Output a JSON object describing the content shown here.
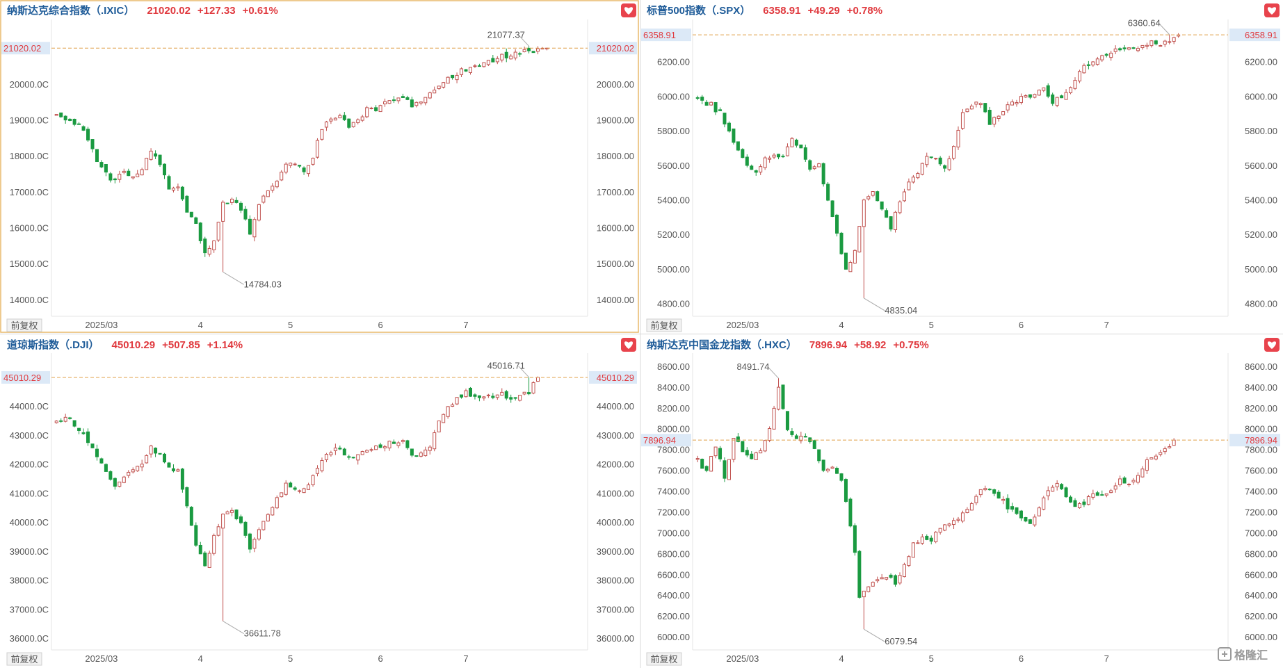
{
  "buttons": {
    "restore_label": "前复权"
  },
  "watermark": {
    "text": "格隆汇"
  },
  "colors": {
    "up": "#c0504d",
    "down": "#1a9a41",
    "price_line": "#e0a04a",
    "text_up": "#e0393e",
    "title": "#1f5c99",
    "last_bg": "#dce9f7"
  },
  "chart_data": [
    {
      "type": "candlestick",
      "name": "纳斯达克综合指数（.IXIC）",
      "last": "21020.02",
      "change": "+127.33",
      "change_pct": "+0.61%",
      "last_value": 21020.02,
      "ylim": [
        13550,
        21780
      ],
      "yticks": [
        14000,
        15000,
        16000,
        17000,
        18000,
        19000,
        20000
      ],
      "ytick_labels_left": [
        "14000.0C",
        "15000.0C",
        "16000.0C",
        "17000.0C",
        "18000.0C",
        "19000.0C",
        "20000.0C"
      ],
      "ytick_labels_right": [
        "14000.00",
        "15000.00",
        "16000.00",
        "17000.00",
        "18000.00",
        "19000.00",
        "20000.00"
      ],
      "xticks": [
        {
          "label": "2025/03",
          "index": 10
        },
        {
          "label": "4",
          "index": 32
        },
        {
          "label": "5",
          "index": 52
        },
        {
          "label": "6",
          "index": 72
        },
        {
          "label": "7",
          "index": 91
        }
      ],
      "n_bars": 117,
      "annotations": [
        {
          "text": "21077.37",
          "index": 105,
          "value": 21077.37,
          "pos": "high"
        },
        {
          "text": "14784.03",
          "index": 37,
          "value": 14784.03,
          "pos": "low"
        }
      ],
      "keypoints": [
        [
          0,
          19150
        ],
        [
          3,
          19000
        ],
        [
          5,
          18900
        ],
        [
          7,
          18400
        ],
        [
          9,
          17900
        ],
        [
          11,
          17500
        ],
        [
          13,
          17300
        ],
        [
          15,
          17600
        ],
        [
          17,
          17500
        ],
        [
          19,
          17600
        ],
        [
          21,
          18200
        ],
        [
          23,
          17800
        ],
        [
          25,
          17100
        ],
        [
          27,
          17200
        ],
        [
          29,
          16500
        ],
        [
          31,
          16100
        ],
        [
          33,
          15300
        ],
        [
          35,
          15600
        ],
        [
          37,
          16700
        ],
        [
          39,
          16800
        ],
        [
          41,
          16500
        ],
        [
          43,
          15900
        ],
        [
          45,
          16700
        ],
        [
          47,
          17100
        ],
        [
          49,
          17300
        ],
        [
          51,
          17800
        ],
        [
          53,
          17800
        ],
        [
          55,
          17600
        ],
        [
          57,
          18000
        ],
        [
          59,
          18800
        ],
        [
          61,
          19100
        ],
        [
          63,
          19100
        ],
        [
          65,
          18800
        ],
        [
          67,
          19000
        ],
        [
          69,
          19300
        ],
        [
          71,
          19300
        ],
        [
          73,
          19500
        ],
        [
          75,
          19600
        ],
        [
          77,
          19700
        ],
        [
          79,
          19400
        ],
        [
          81,
          19500
        ],
        [
          83,
          19800
        ],
        [
          85,
          20000
        ],
        [
          87,
          20200
        ],
        [
          89,
          20300
        ],
        [
          91,
          20400
        ],
        [
          93,
          20500
        ],
        [
          95,
          20600
        ],
        [
          97,
          20650
        ],
        [
          99,
          20800
        ],
        [
          101,
          20850
        ],
        [
          103,
          20900
        ],
        [
          105,
          21000
        ],
        [
          107,
          20950
        ],
        [
          109,
          21020
        ]
      ]
    },
    {
      "type": "candlestick",
      "name": "标普500指数（.SPX）",
      "last": "6358.91",
      "change": "+49.29",
      "change_pct": "+0.78%",
      "last_value": 6358.91,
      "ylim": [
        4730,
        6440
      ],
      "yticks": [
        4800,
        5000,
        5200,
        5400,
        5600,
        5800,
        6000,
        6200
      ],
      "ytick_labels_left": [
        "4800.00",
        "5000.00",
        "5200.00",
        "5400.00",
        "5600.00",
        "5800.00",
        "6000.00",
        "6200.00"
      ],
      "ytick_labels_right": [
        "4800.00",
        "5000.00",
        "5200.00",
        "5400.00",
        "5600.00",
        "5800.00",
        "6000.00",
        "6200.00"
      ],
      "xticks": [
        {
          "label": "2025/03",
          "index": 10
        },
        {
          "label": "4",
          "index": 32
        },
        {
          "label": "5",
          "index": 52
        },
        {
          "label": "6",
          "index": 72
        },
        {
          "label": "7",
          "index": 91
        }
      ],
      "n_bars": 117,
      "annotations": [
        {
          "text": "6360.64",
          "index": 105,
          "value": 6360.64,
          "pos": "high"
        },
        {
          "text": "4835.04",
          "index": 37,
          "value": 4835.04,
          "pos": "low"
        }
      ],
      "keypoints": [
        [
          0,
          6000
        ],
        [
          3,
          5950
        ],
        [
          5,
          5900
        ],
        [
          7,
          5800
        ],
        [
          9,
          5700
        ],
        [
          11,
          5600
        ],
        [
          13,
          5580
        ],
        [
          15,
          5650
        ],
        [
          17,
          5660
        ],
        [
          19,
          5650
        ],
        [
          21,
          5750
        ],
        [
          23,
          5700
        ],
        [
          25,
          5580
        ],
        [
          27,
          5600
        ],
        [
          29,
          5400
        ],
        [
          31,
          5200
        ],
        [
          33,
          5000
        ],
        [
          35,
          5100
        ],
        [
          37,
          5400
        ],
        [
          39,
          5450
        ],
        [
          41,
          5350
        ],
        [
          43,
          5250
        ],
        [
          45,
          5400
        ],
        [
          47,
          5500
        ],
        [
          49,
          5550
        ],
        [
          51,
          5650
        ],
        [
          53,
          5650
        ],
        [
          55,
          5600
        ],
        [
          57,
          5700
        ],
        [
          59,
          5900
        ],
        [
          61,
          5950
        ],
        [
          63,
          5960
        ],
        [
          65,
          5850
        ],
        [
          67,
          5900
        ],
        [
          69,
          5950
        ],
        [
          71,
          5980
        ],
        [
          73,
          6000
        ],
        [
          75,
          6020
        ],
        [
          77,
          6050
        ],
        [
          79,
          5980
        ],
        [
          81,
          6000
        ],
        [
          83,
          6050
        ],
        [
          85,
          6150
        ],
        [
          87,
          6200
        ],
        [
          89,
          6220
        ],
        [
          91,
          6250
        ],
        [
          93,
          6260
        ],
        [
          95,
          6270
        ],
        [
          97,
          6280
        ],
        [
          99,
          6300
        ],
        [
          101,
          6310
        ],
        [
          103,
          6300
        ],
        [
          105,
          6330
        ],
        [
          107,
          6359
        ]
      ]
    },
    {
      "type": "candlestick",
      "name": "道琼斯指数（.DJI）",
      "last": "45010.29",
      "change": "+507.85",
      "change_pct": "+1.14%",
      "last_value": 45010.29,
      "ylim": [
        35620,
        45800
      ],
      "yticks": [
        36000,
        37000,
        38000,
        39000,
        40000,
        41000,
        42000,
        43000,
        44000
      ],
      "ytick_labels_left": [
        "36000.0C",
        "37000.0C",
        "38000.0C",
        "39000.0C",
        "40000.0C",
        "41000.0C",
        "42000.0C",
        "43000.0C",
        "44000.0C"
      ],
      "ytick_labels_right": [
        "36000.00",
        "37000.00",
        "38000.00",
        "39000.00",
        "40000.00",
        "41000.00",
        "42000.00",
        "43000.00",
        "44000.00"
      ],
      "xticks": [
        {
          "label": "2025/03",
          "index": 10
        },
        {
          "label": "4",
          "index": 32
        },
        {
          "label": "5",
          "index": 52
        },
        {
          "label": "6",
          "index": 72
        },
        {
          "label": "7",
          "index": 91
        }
      ],
      "n_bars": 117,
      "annotations": [
        {
          "text": "45016.71",
          "index": 105,
          "value": 45016.71,
          "pos": "high"
        },
        {
          "text": "36611.78",
          "index": 37,
          "value": 36611.78,
          "pos": "low"
        }
      ],
      "keypoints": [
        [
          0,
          43500
        ],
        [
          3,
          43600
        ],
        [
          5,
          43200
        ],
        [
          7,
          42800
        ],
        [
          9,
          42400
        ],
        [
          11,
          41800
        ],
        [
          13,
          41300
        ],
        [
          15,
          41600
        ],
        [
          17,
          41900
        ],
        [
          19,
          42000
        ],
        [
          21,
          42600
        ],
        [
          23,
          42400
        ],
        [
          25,
          41900
        ],
        [
          27,
          41800
        ],
        [
          29,
          40500
        ],
        [
          31,
          39200
        ],
        [
          33,
          38500
        ],
        [
          35,
          39500
        ],
        [
          37,
          40300
        ],
        [
          39,
          40400
        ],
        [
          41,
          40000
        ],
        [
          43,
          39200
        ],
        [
          45,
          39800
        ],
        [
          47,
          40300
        ],
        [
          49,
          40800
        ],
        [
          51,
          41300
        ],
        [
          53,
          41200
        ],
        [
          55,
          41100
        ],
        [
          57,
          41600
        ],
        [
          59,
          42200
        ],
        [
          61,
          42400
        ],
        [
          63,
          42600
        ],
        [
          65,
          42200
        ],
        [
          67,
          42300
        ],
        [
          69,
          42500
        ],
        [
          71,
          42600
        ],
        [
          73,
          42700
        ],
        [
          75,
          42800
        ],
        [
          77,
          42900
        ],
        [
          79,
          42300
        ],
        [
          81,
          42300
        ],
        [
          83,
          42700
        ],
        [
          85,
          43500
        ],
        [
          87,
          44000
        ],
        [
          89,
          44300
        ],
        [
          91,
          44500
        ],
        [
          93,
          44400
        ],
        [
          95,
          44300
        ],
        [
          97,
          44300
        ],
        [
          99,
          44400
        ],
        [
          101,
          44200
        ],
        [
          103,
          44400
        ],
        [
          105,
          44500
        ],
        [
          107,
          45010
        ]
      ]
    },
    {
      "type": "candlestick",
      "name": "纳斯达克中国金龙指数（.HXC）",
      "last": "7896.94",
      "change": "+58.92",
      "change_pct": "+0.75%",
      "last_value": 7896.94,
      "ylim": [
        5880,
        8720
      ],
      "yticks": [
        6000,
        6200,
        6400,
        6600,
        6800,
        7000,
        7200,
        7400,
        7600,
        7800,
        8000,
        8200,
        8400,
        8600
      ],
      "ytick_labels_left": [
        "6000.00",
        "6200.00",
        "6400.00",
        "6600.00",
        "6800.00",
        "7000.00",
        "7200.00",
        "7400.00",
        "7600.00",
        "7800.00",
        "8000.00",
        "8200.00",
        "8400.00",
        "8600.00"
      ],
      "ytick_labels_right": [
        "6000.00",
        "6200.00",
        "6400.00",
        "6600.00",
        "6800.00",
        "7000.00",
        "7200.00",
        "7400.00",
        "7600.00",
        "7800.00",
        "8000.00",
        "8200.00",
        "8400.00",
        "8600.00"
      ],
      "xticks": [
        {
          "label": "2025/03",
          "index": 10
        },
        {
          "label": "4",
          "index": 32
        },
        {
          "label": "5",
          "index": 52
        },
        {
          "label": "6",
          "index": 72
        },
        {
          "label": "7",
          "index": 91
        }
      ],
      "n_bars": 117,
      "annotations": [
        {
          "text": "8491.74",
          "index": 18,
          "value": 8491.74,
          "pos": "high"
        },
        {
          "text": "6079.54",
          "index": 37,
          "value": 6079.54,
          "pos": "low"
        }
      ],
      "keypoints": [
        [
          0,
          7700
        ],
        [
          2,
          7600
        ],
        [
          4,
          7850
        ],
        [
          6,
          7550
        ],
        [
          8,
          7900
        ],
        [
          10,
          7800
        ],
        [
          12,
          7750
        ],
        [
          14,
          7800
        ],
        [
          16,
          8000
        ],
        [
          18,
          8400
        ],
        [
          20,
          8000
        ],
        [
          22,
          7900
        ],
        [
          24,
          7950
        ],
        [
          26,
          7800
        ],
        [
          28,
          7600
        ],
        [
          30,
          7650
        ],
        [
          32,
          7500
        ],
        [
          34,
          7100
        ],
        [
          35,
          6800
        ],
        [
          36,
          6400
        ],
        [
          38,
          6500
        ],
        [
          40,
          6550
        ],
        [
          42,
          6600
        ],
        [
          44,
          6500
        ],
        [
          46,
          6700
        ],
        [
          48,
          6900
        ],
        [
          50,
          6950
        ],
        [
          52,
          6950
        ],
        [
          54,
          7050
        ],
        [
          56,
          7100
        ],
        [
          58,
          7150
        ],
        [
          60,
          7200
        ],
        [
          62,
          7350
        ],
        [
          64,
          7450
        ],
        [
          66,
          7400
        ],
        [
          68,
          7300
        ],
        [
          70,
          7200
        ],
        [
          72,
          7150
        ],
        [
          74,
          7100
        ],
        [
          76,
          7250
        ],
        [
          78,
          7400
        ],
        [
          80,
          7500
        ],
        [
          82,
          7350
        ],
        [
          84,
          7250
        ],
        [
          86,
          7300
        ],
        [
          88,
          7350
        ],
        [
          90,
          7350
        ],
        [
          92,
          7400
        ],
        [
          94,
          7500
        ],
        [
          96,
          7450
        ],
        [
          98,
          7550
        ],
        [
          100,
          7700
        ],
        [
          102,
          7750
        ],
        [
          104,
          7800
        ],
        [
          106,
          7897
        ]
      ]
    }
  ]
}
